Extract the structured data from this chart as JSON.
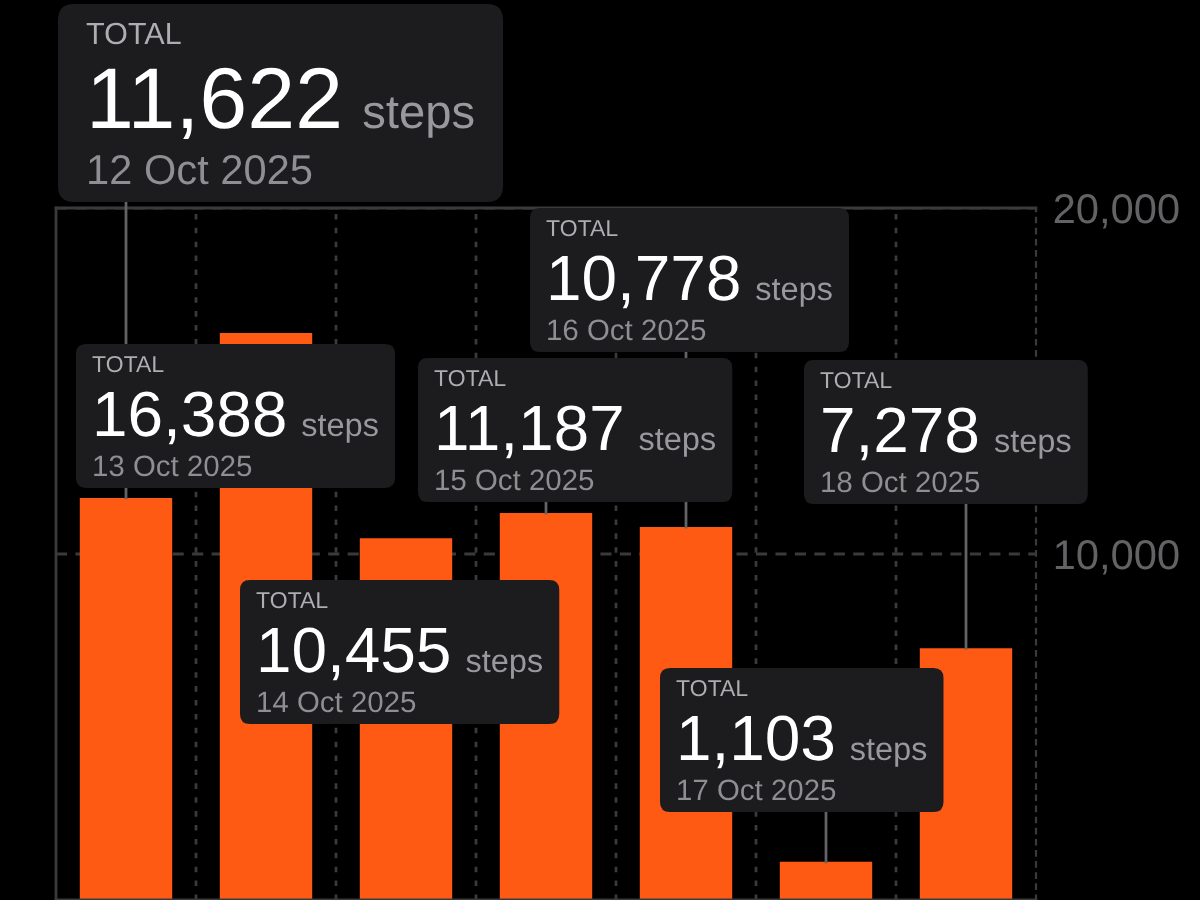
{
  "chart_data": {
    "type": "bar",
    "categories": [
      null,
      null,
      null,
      null,
      null,
      null,
      null
    ],
    "values": [
      11622,
      16388,
      10455,
      11187,
      10778,
      1103,
      7278
    ],
    "color": "#ff5a14",
    "value_labels": [
      "TOTAL\n11,622 steps\n12 Oct 2025",
      "TOTAL\n16,388 steps\n13 Oct 2025",
      "TOTAL\n10,455 steps\n14 Oct 2025",
      "TOTAL\n11,187 steps\n15 Oct 2025",
      "TOTAL\n10,778 steps\n16 Oct 2025",
      "TOTAL\n1,103 steps\n17 Oct 2025",
      "TOTAL\n7,278 steps\n18 Oct 2025"
    ],
    "ylim": [
      0,
      20000
    ],
    "yticks": [
      {
        "value": 10000,
        "label": "10,000"
      },
      {
        "value": 20000,
        "label": "20,000"
      }
    ],
    "grid": true,
    "tick_labels": "y"
  }
}
